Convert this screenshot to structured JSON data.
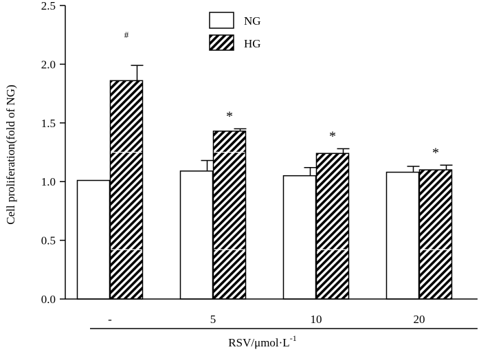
{
  "chart_data": {
    "type": "bar",
    "title": "",
    "xlabel": "RSV/μmol·L",
    "xlabel_sup": "-1",
    "ylabel": "Cell proliferation(fold of NG)",
    "ylim": [
      0,
      2.5
    ],
    "yticks": [
      "0.0",
      "0.5",
      "1.0",
      "1.5",
      "2.0",
      "2.5"
    ],
    "categories": [
      "-",
      "5",
      "10",
      "20"
    ],
    "series": [
      {
        "name": "NG",
        "pattern": "white",
        "values": [
          1.01,
          1.09,
          1.05,
          1.08
        ],
        "errors": [
          0.0,
          0.09,
          0.07,
          0.05
        ],
        "marks": [
          "",
          "",
          "",
          ""
        ]
      },
      {
        "name": "HG",
        "pattern": "hatched",
        "values": [
          1.86,
          1.43,
          1.24,
          1.1
        ],
        "errors": [
          0.13,
          0.02,
          0.04,
          0.04
        ],
        "marks": [
          "#",
          "*",
          "*",
          "*"
        ]
      }
    ],
    "legend": {
      "position": "top-center",
      "entries": [
        "NG",
        "HG"
      ]
    },
    "colors": {
      "stroke": "#000000",
      "fill_white": "#ffffff",
      "hatch": "#000000"
    }
  }
}
